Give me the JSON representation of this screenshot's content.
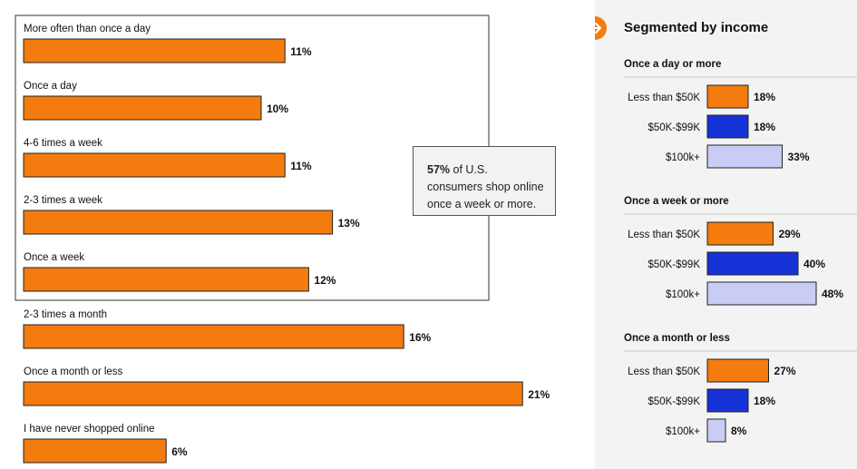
{
  "callout": {
    "highlight": "57%",
    "text": " of U.S. consumers shop online once a week or more."
  },
  "right": {
    "title": "Segmented by income",
    "icon": "arrow-right-circle-icon",
    "colors": {
      "accent": "#f47b0e",
      "blue": "#1732d6",
      "lavender": "#c9cdf6",
      "panel": "#f3f3f3"
    }
  },
  "chart_data": [
    {
      "type": "bar",
      "orientation": "horizontal",
      "title": "",
      "categories": [
        "More often than once a day",
        "Once a day",
        "4-6 times a week",
        "2-3 times a week",
        "Once a week",
        "2-3 times a month",
        "Once a month or less",
        "I have never shopped online"
      ],
      "values": [
        11,
        10,
        11,
        13,
        12,
        16,
        21,
        6
      ],
      "value_labels": [
        "11%",
        "10%",
        "11%",
        "13%",
        "12%",
        "16%",
        "21%",
        "6%"
      ],
      "unit": "%",
      "color": "#f47b0e",
      "highlighted_group": [
        "More often than once a day",
        "Once a day",
        "4-6 times a week",
        "2-3 times a week",
        "Once a week"
      ]
    },
    {
      "type": "bar",
      "orientation": "horizontal",
      "title": "Segmented by income",
      "groups": [
        {
          "name": "Once a day or more",
          "categories": [
            "Less than $50K",
            "$50K-$99K",
            "$100k+"
          ],
          "values": [
            18,
            18,
            33
          ],
          "value_labels": [
            "18%",
            "18%",
            "33%"
          ]
        },
        {
          "name": "Once a week or more",
          "categories": [
            "Less than $50K",
            "$50K-$99K",
            "$100k+"
          ],
          "values": [
            29,
            40,
            48
          ],
          "value_labels": [
            "29%",
            "40%",
            "48%"
          ]
        },
        {
          "name": "Once a month or less",
          "categories": [
            "Less than $50K",
            "$50K-$99K",
            "$100k+"
          ],
          "values": [
            27,
            18,
            8
          ],
          "value_labels": [
            "27%",
            "18%",
            "8%"
          ]
        }
      ],
      "series_colors": [
        "#f47b0e",
        "#1732d6",
        "#c9cdf6"
      ],
      "unit": "%"
    }
  ]
}
